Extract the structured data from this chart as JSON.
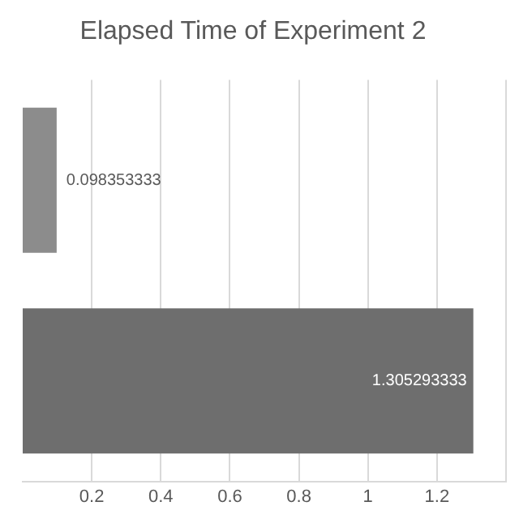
{
  "chart_data": {
    "type": "bar",
    "orientation": "horizontal",
    "title": "Elapsed Time of Experiment 2",
    "categories": [
      null,
      null
    ],
    "values": [
      0.098353333,
      1.305293333
    ],
    "colors": [
      "#8c8c8c",
      "#6e6e6e"
    ],
    "xlim": [
      0,
      1.4
    ],
    "xticks": [
      0.2,
      0.4,
      0.6,
      0.8,
      1,
      1.2,
      {
        "value": 1.4,
        "label": null
      }
    ],
    "grid": "x",
    "data_labels": true,
    "legend": false
  }
}
